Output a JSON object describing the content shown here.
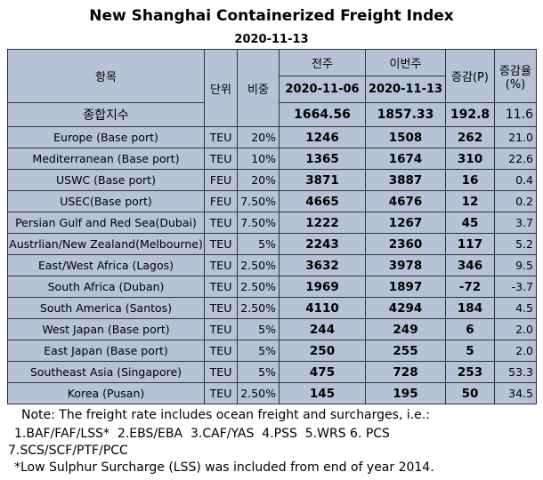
{
  "title": "New Shanghai Containerized Freight Index",
  "date": "2020-11-13",
  "header": {
    "item": "항목",
    "unit": "단위",
    "weight": "비중",
    "prev_week": "전주",
    "this_week": "이번주",
    "prev_date": "2020-11-06",
    "this_date": "2020-11-13",
    "change": "증감(P)",
    "rate_line1": "증감율",
    "rate_line2": "(%)"
  },
  "composite": {
    "label": "종합지수",
    "prev": "1664.56",
    "cur": "1857.33",
    "change": "192.8",
    "rate": "11.6"
  },
  "rows": [
    {
      "route": "Europe (Base port)",
      "unit": "TEU",
      "weight": "20%",
      "prev": "1246",
      "cur": "1508",
      "change": "262",
      "rate": "21.0"
    },
    {
      "route": "Mediterranean (Base port)",
      "unit": "TEU",
      "weight": "10%",
      "prev": "1365",
      "cur": "1674",
      "change": "310",
      "rate": "22.6"
    },
    {
      "route": "USWC (Base port)",
      "unit": "FEU",
      "weight": "20%",
      "prev": "3871",
      "cur": "3887",
      "change": "16",
      "rate": "0.4"
    },
    {
      "route": "USEC(Base port)",
      "unit": "FEU",
      "weight": "7.50%",
      "prev": "4665",
      "cur": "4676",
      "change": "12",
      "rate": "0.2"
    },
    {
      "route": "Persian Gulf and Red Sea(Dubai)",
      "unit": "TEU",
      "weight": "7.50%",
      "prev": "1222",
      "cur": "1267",
      "change": "45",
      "rate": "3.7"
    },
    {
      "route": "Austrlian/New Zealand(Melbourne)",
      "unit": "TEU",
      "weight": "5%",
      "prev": "2243",
      "cur": "2360",
      "change": "117",
      "rate": "5.2"
    },
    {
      "route": "East/West Africa (Lagos)",
      "unit": "TEU",
      "weight": "2.50%",
      "prev": "3632",
      "cur": "3978",
      "change": "346",
      "rate": "9.5"
    },
    {
      "route": "South Africa (Duban)",
      "unit": "TEU",
      "weight": "2.50%",
      "prev": "1969",
      "cur": "1897",
      "change": "-72",
      "rate": "-3.7"
    },
    {
      "route": "South America (Santos)",
      "unit": "TEU",
      "weight": "2.50%",
      "prev": "4110",
      "cur": "4294",
      "change": "184",
      "rate": "4.5"
    },
    {
      "route": "West Japan (Base port)",
      "unit": "TEU",
      "weight": "5%",
      "prev": "244",
      "cur": "249",
      "change": "6",
      "rate": "2.0"
    },
    {
      "route": "East Japan (Base port)",
      "unit": "TEU",
      "weight": "5%",
      "prev": "250",
      "cur": "255",
      "change": "5",
      "rate": "2.0"
    },
    {
      "route": "Southeast Asia (Singapore)",
      "unit": "TEU",
      "weight": "5%",
      "prev": "475",
      "cur": "728",
      "change": "253",
      "rate": "53.3"
    },
    {
      "route": "Korea (Pusan)",
      "unit": "TEU",
      "weight": "2.50%",
      "prev": "145",
      "cur": "195",
      "change": "50",
      "rate": "34.5"
    }
  ],
  "notes": [
    "Note: The freight rate includes ocean freight and surcharges, i.e.:",
    "1.BAF/FAF/LSS*  2.EBS/EBA  3.CAF/YAS  4.PSS  5.WRS 6. PCS",
    "7.SCS/SCF/PTF/PCC",
    "*Low Sulphur Surcharge (LSS) was included from end of year 2014."
  ]
}
